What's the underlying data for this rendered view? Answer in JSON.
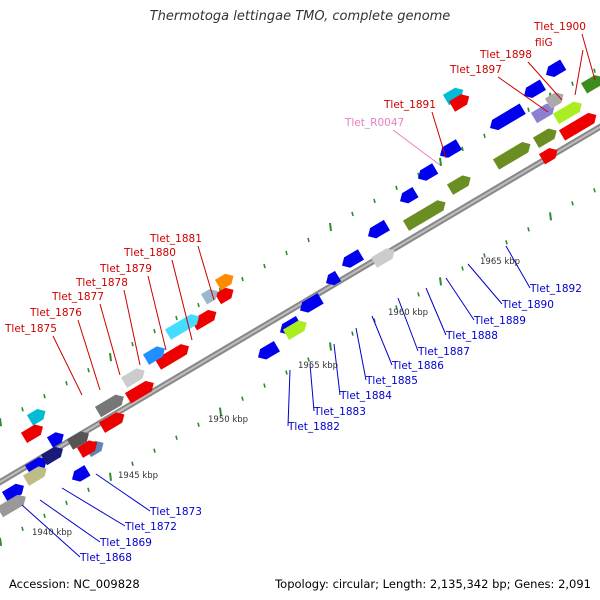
{
  "title": "Thermotoga lettingae TMO, complete genome",
  "footer": {
    "accession": "Accession: NC_009828",
    "summary": "Topology: circular; Length: 2,135,342 bp; Genes: 2,091"
  },
  "colors": {
    "top_label": "#cc0000",
    "rna_label": "#e87fbf",
    "bottom_label": "#0000cc",
    "backbone": "#8c8c8c",
    "tick": "#2e8b2e"
  },
  "kbp_marks": [
    {
      "label": "1940 kbp"
    },
    {
      "label": "1945 kbp"
    },
    {
      "label": "1950 kbp"
    },
    {
      "label": "1955 kbp"
    },
    {
      "label": "1960 kbp"
    },
    {
      "label": "1965 kbp"
    }
  ],
  "top_labels": [
    {
      "text": "Tlet_1875"
    },
    {
      "text": "Tlet_1876"
    },
    {
      "text": "Tlet_1877"
    },
    {
      "text": "Tlet_1878"
    },
    {
      "text": "Tlet_1879"
    },
    {
      "text": "Tlet_1880"
    },
    {
      "text": "Tlet_1881"
    },
    {
      "text": "Tlet_R0047"
    },
    {
      "text": "Tlet_1891"
    },
    {
      "text": "Tlet_1897"
    },
    {
      "text": "Tlet_1898"
    },
    {
      "text": "fliG"
    },
    {
      "text": "Tlet_1900"
    }
  ],
  "bottom_labels": [
    {
      "text": "Tlet_1868"
    },
    {
      "text": "Tlet_1869"
    },
    {
      "text": "Tlet_1872"
    },
    {
      "text": "Tlet_1873"
    },
    {
      "text": "Tlet_1882"
    },
    {
      "text": "Tlet_1883"
    },
    {
      "text": "Tlet_1884"
    },
    {
      "text": "Tlet_1885"
    },
    {
      "text": "Tlet_1886"
    },
    {
      "text": "Tlet_1887"
    },
    {
      "text": "Tlet_1888"
    },
    {
      "text": "Tlet_1889"
    },
    {
      "text": "Tlet_1890"
    },
    {
      "text": "Tlet_1892"
    }
  ]
}
